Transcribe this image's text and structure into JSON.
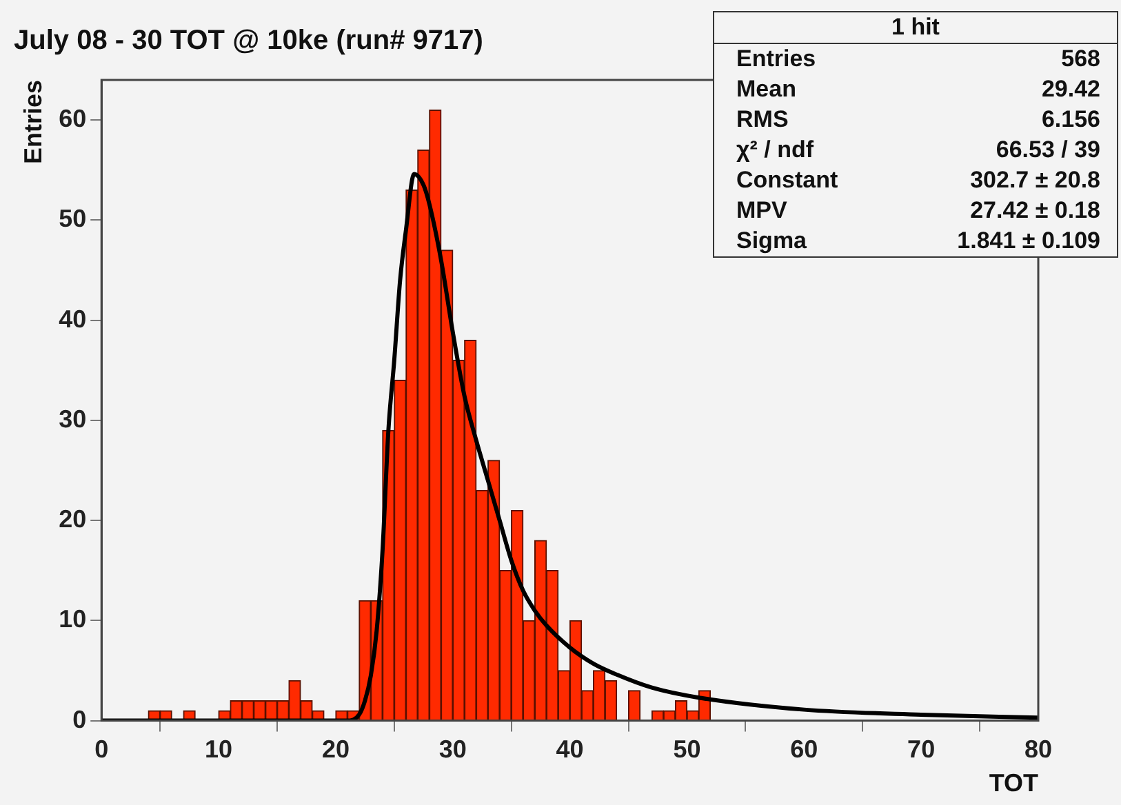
{
  "chart_data": {
    "type": "histogram",
    "title": "July 08 - 30 TOT @ 10ke (run# 9717)",
    "xlabel": "TOT",
    "ylabel": "Entries",
    "bins": [
      0,
      1,
      2,
      3,
      4,
      5,
      6,
      7,
      8,
      9,
      10,
      11,
      12,
      13,
      14,
      15,
      16,
      17,
      18,
      19,
      20,
      21,
      22,
      23,
      24,
      25,
      26,
      27,
      28,
      29,
      30,
      31,
      32,
      33,
      34,
      35,
      36,
      37,
      38,
      39,
      40,
      41,
      42,
      43,
      44,
      45,
      46,
      47,
      48,
      49,
      50,
      51,
      52,
      53,
      54,
      55,
      56,
      57,
      58,
      59,
      60,
      61,
      62,
      63,
      64,
      65,
      66,
      67,
      68,
      69,
      70,
      71,
      72,
      73,
      74,
      75,
      76,
      77,
      78,
      79,
      80
    ],
    "values": [
      0,
      0,
      0,
      0,
      1,
      1,
      0,
      1,
      0,
      0,
      1,
      2,
      2,
      2,
      2,
      2,
      4,
      2,
      1,
      0,
      1,
      1,
      12,
      12,
      29,
      34,
      53,
      57,
      61,
      47,
      36,
      38,
      23,
      26,
      15,
      21,
      10,
      18,
      15,
      5,
      10,
      3,
      5,
      4,
      0,
      3,
      0,
      1,
      1,
      2,
      1,
      3,
      0,
      0,
      0,
      0,
      0,
      0,
      0,
      0,
      0,
      0,
      0,
      0,
      0,
      0,
      0,
      0,
      0,
      0,
      0,
      0,
      0,
      0,
      0,
      0,
      0,
      0,
      0,
      0
    ],
    "color": "#ff2a00",
    "series": [
      {
        "type": "line",
        "color": "#000000",
        "x": [
          0,
          21,
          22,
          22.5,
          23,
          23.5,
          24,
          24.5,
          25,
          25.5,
          26,
          26.7,
          27.5,
          28,
          29,
          30,
          31,
          32,
          33,
          34,
          35,
          36,
          37,
          38,
          40,
          42,
          44,
          47,
          51,
          60,
          70,
          80
        ],
        "values": [
          0,
          0,
          0.6,
          2,
          4.5,
          9,
          17,
          29,
          36,
          44,
          49,
          54.6,
          53.5,
          51.6,
          46,
          38.8,
          32.4,
          28,
          24,
          20,
          16,
          13,
          11,
          9.5,
          7.3,
          5.7,
          4.6,
          3.3,
          2.3,
          1.1,
          0.6,
          0.3
        ]
      }
    ],
    "xlim": [
      0,
      80
    ],
    "xticks": [
      0,
      10,
      20,
      30,
      40,
      50,
      60,
      70,
      80
    ],
    "ylim": [
      0,
      64
    ],
    "yticks": [
      0,
      10,
      20,
      30,
      40,
      50,
      60
    ],
    "grid": false,
    "legend": false,
    "marker": "none",
    "annotations": [
      "1 hit",
      "Entries",
      "568",
      "Mean",
      "29.42",
      "RMS",
      "6.156",
      "χ² / ndf",
      "66.53 / 39",
      "Constant",
      "302.7 ± 20.8",
      "MPV",
      "27.42 ± 0.18",
      "Sigma",
      "1.841 ± 0.109"
    ]
  }
}
